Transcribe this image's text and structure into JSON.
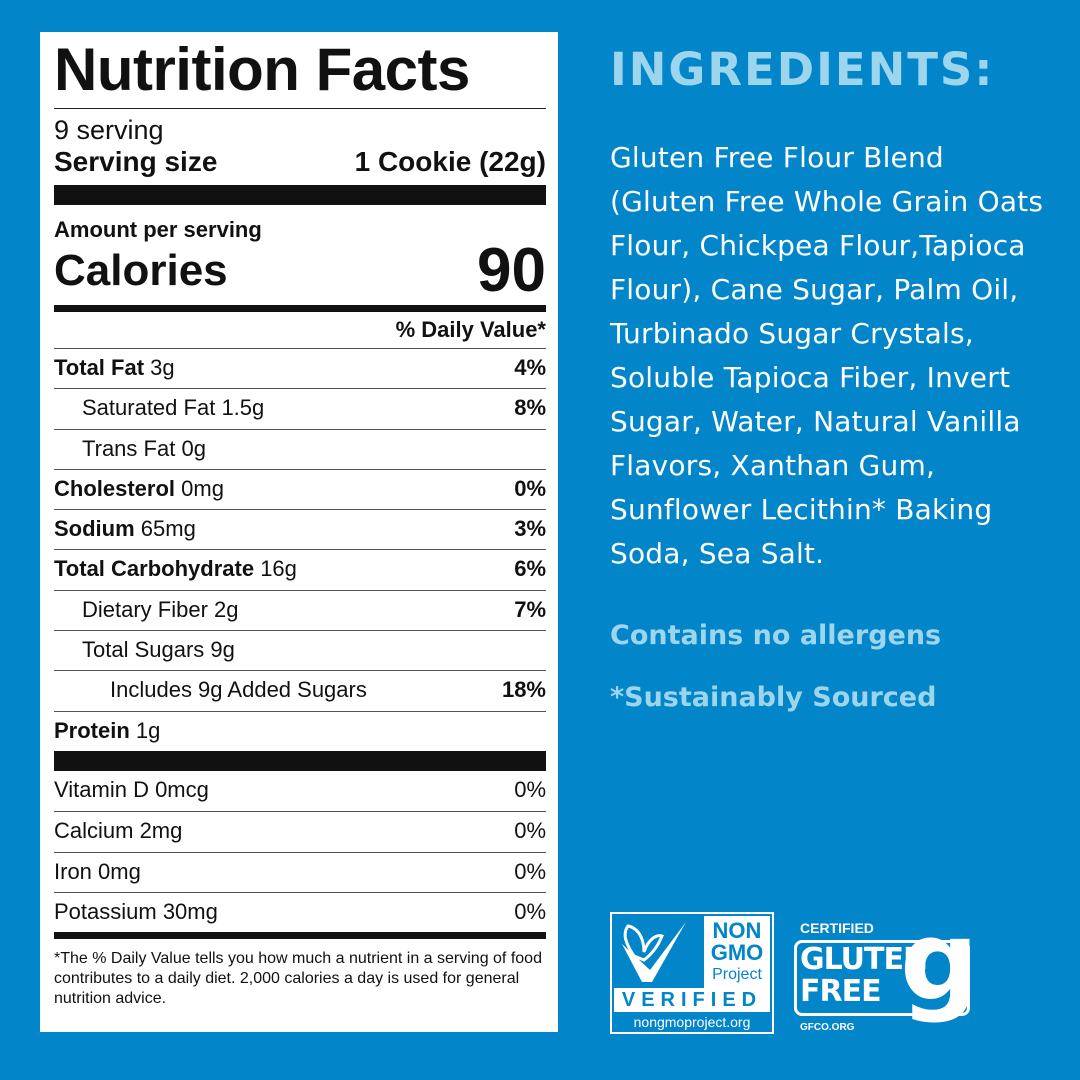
{
  "label": {
    "title": "Nutrition Facts",
    "servings": "9 serving",
    "serving_size_label": "Serving size",
    "serving_size_value": "1 Cookie (22g)",
    "amount_per_serving": "Amount per serving",
    "calories_label": "Calories",
    "calories_value": "90",
    "dv_header": "% Daily Value*",
    "nutrients": [
      {
        "name": "Total Fat",
        "amount": "3g",
        "dv": "4%",
        "bold": true,
        "indent": 0
      },
      {
        "name": "Saturated Fat",
        "amount": "1.5g",
        "dv": "8%",
        "bold": false,
        "indent": 1
      },
      {
        "name": "Trans Fat",
        "amount": "0g",
        "dv": "",
        "bold": false,
        "indent": 1
      },
      {
        "name": "Cholesterol",
        "amount": "0mg",
        "dv": "0%",
        "bold": true,
        "indent": 0
      },
      {
        "name": "Sodium",
        "amount": "65mg",
        "dv": "3%",
        "bold": true,
        "indent": 0
      },
      {
        "name": "Total Carbohydrate",
        "amount": "16g",
        "dv": "6%",
        "bold": true,
        "indent": 0
      },
      {
        "name": "Dietary Fiber",
        "amount": "2g",
        "dv": "7%",
        "bold": false,
        "indent": 1
      },
      {
        "name": "Total Sugars",
        "amount": "9g",
        "dv": "",
        "bold": false,
        "indent": 1
      },
      {
        "name": "Includes 9g Added Sugars",
        "amount": "",
        "dv": "18%",
        "bold": false,
        "indent": 2
      },
      {
        "name": "Protein",
        "amount": "1g",
        "dv": "",
        "bold": true,
        "indent": 0
      }
    ],
    "vitamins": [
      {
        "name": "Vitamin D 0mcg",
        "dv": "0%"
      },
      {
        "name": "Calcium 2mg",
        "dv": "0%"
      },
      {
        "name": "Iron 0mg",
        "dv": "0%"
      },
      {
        "name": "Potassium 30mg",
        "dv": "0%"
      }
    ],
    "footnote": "*The % Daily Value tells you how much a nutrient in a serving of food contributes to a daily diet. 2,000 calories a day is used for general nutrition advice."
  },
  "ingredients": {
    "heading": "INGREDIENTS:",
    "text": "Gluten Free Flour Blend (Gluten Free Whole Grain Oats Flour, Chickpea Flour,Tapioca Flour), Cane Sugar, Palm Oil, Turbinado Sugar Crystals, Soluble Tapioca Fiber, Invert Sugar, Water, Natural Vanilla Flavors, Xanthan Gum, Sunflower Lecithin* Baking Soda, Sea Salt.",
    "allergens": "Contains no allergens",
    "sourced": "*Sustainably Sourced"
  },
  "logos": {
    "nongmo": {
      "line1": "NON",
      "line2": "GMO",
      "line3": "Project",
      "verified": "VERIFIED",
      "url": "nongmoproject.org",
      "icon": "butterfly-check-icon"
    },
    "gluten_free": {
      "certified": "CERTIFIED",
      "line1": "GLUTEN",
      "line2": "FREE",
      "url": "GFCO.ORG",
      "icon": "g-icon"
    }
  },
  "colors": {
    "background": "#0285c9",
    "accent": "#9dd6ec",
    "label": "#ffffff"
  }
}
